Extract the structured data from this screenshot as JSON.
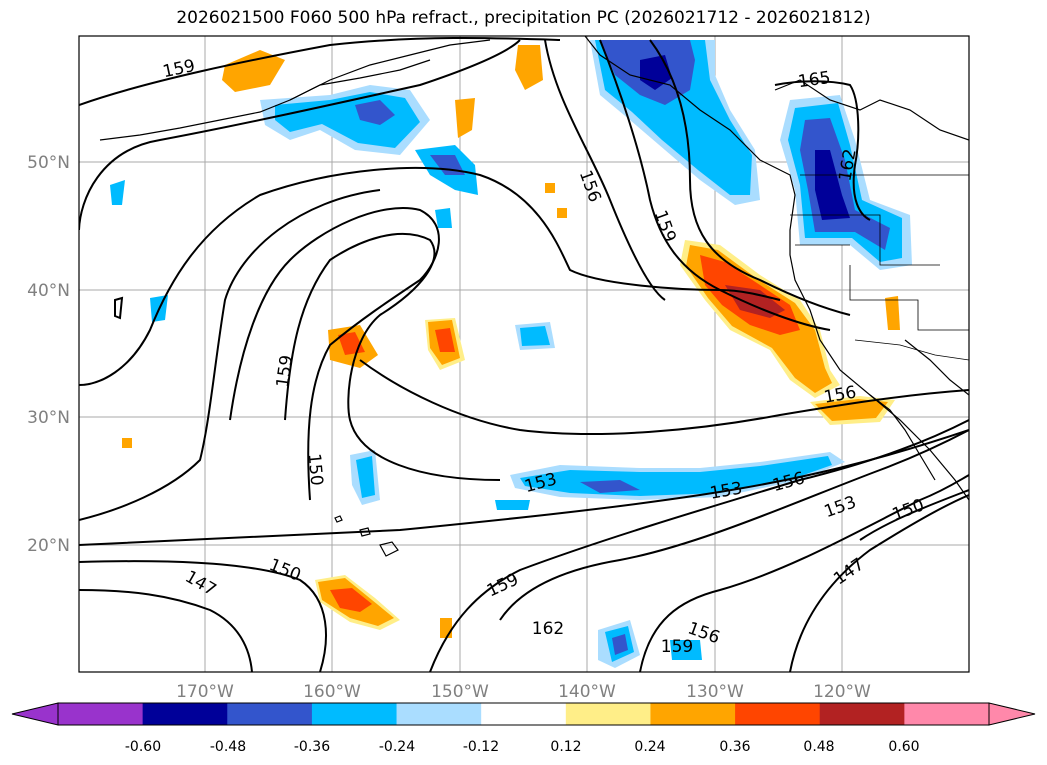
{
  "title": "2026021500 F060 500 hPa refract., precipitation PC (2026021712 - 2026021812)",
  "map": {
    "lat_labels": [
      "50°N",
      "40°N",
      "30°N",
      "20°N"
    ],
    "lon_labels": [
      "170°W",
      "160°W",
      "150°W",
      "140°W",
      "130°W",
      "120°W"
    ],
    "gridline_color": "#a9a9a9"
  },
  "contour_labels": [
    "159",
    "165",
    "156",
    "159",
    "162",
    "159",
    "150",
    "156",
    "153",
    "153",
    "156",
    "153",
    "150",
    "147",
    "150",
    "159",
    "162",
    "156",
    "159"
  ],
  "colorbar": {
    "ticks": [
      "-0.60",
      "-0.48",
      "-0.36",
      "-0.24",
      "-0.12",
      "0.12",
      "0.24",
      "0.36",
      "0.48",
      "0.60"
    ],
    "colors": {
      "under": "#9933cc",
      "bins": [
        "#9933cc",
        "#000099",
        "#3355cc",
        "#00bbff",
        "#aaddff",
        "#ffffff",
        "#ffee88",
        "#ffa500",
        "#ff4500",
        "#b22222",
        "#ff88aa"
      ],
      "over": "#ff88aa"
    }
  },
  "fill_colors": {
    "neg_light": "#aaddff",
    "neg_mid": "#00bbff",
    "neg_strong": "#3355cc",
    "neg_deep": "#000099",
    "pos_light": "#ffee88",
    "pos_mid": "#ffa500",
    "pos_strong": "#ff4500",
    "pos_deep": "#b22222"
  }
}
